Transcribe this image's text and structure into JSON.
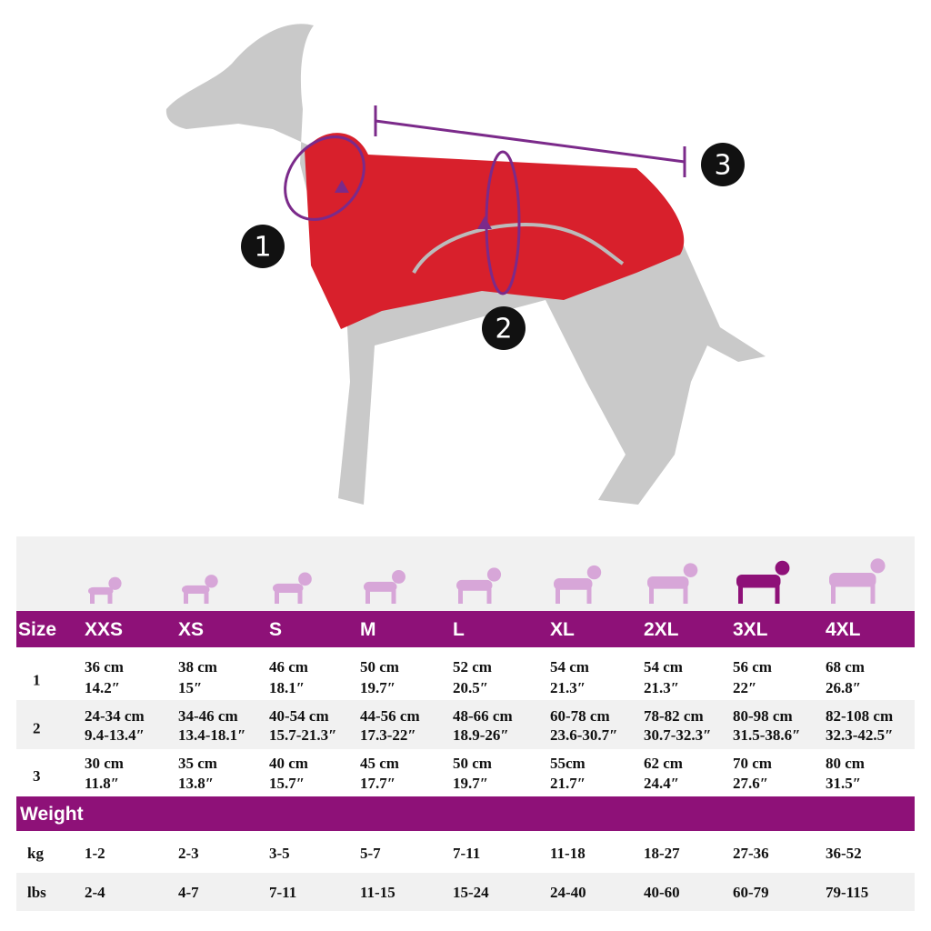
{
  "markers": [
    "1",
    "2",
    "3"
  ],
  "table": {
    "size_header": "Size",
    "sizes": [
      "XXS",
      "XS",
      "S",
      "M",
      "L",
      "XL",
      "2XL",
      "3XL",
      "4XL"
    ],
    "rows": [
      {
        "label": "1",
        "cells": [
          [
            "36 cm",
            "14.2″"
          ],
          [
            "38 cm",
            "15″"
          ],
          [
            "46 cm",
            "18.1″"
          ],
          [
            "50 cm",
            "19.7″"
          ],
          [
            "52 cm",
            "20.5″"
          ],
          [
            "54 cm",
            "21.3″"
          ],
          [
            "54 cm",
            "21.3″"
          ],
          [
            "56 cm",
            "22″"
          ],
          [
            "68 cm",
            "26.8″"
          ]
        ]
      },
      {
        "label": "2",
        "cells": [
          [
            "24-34 cm",
            "9.4-13.4″"
          ],
          [
            "34-46 cm",
            "13.4-18.1″"
          ],
          [
            "40-54 cm",
            "15.7-21.3″"
          ],
          [
            "44-56 cm",
            "17.3-22″"
          ],
          [
            "48-66 cm",
            "18.9-26″"
          ],
          [
            "60-78 cm",
            "23.6-30.7″"
          ],
          [
            "78-82 cm",
            "30.7-32.3″"
          ],
          [
            "80-98 cm",
            "31.5-38.6″"
          ],
          [
            "82-108 cm",
            "32.3-42.5″"
          ]
        ]
      },
      {
        "label": "3",
        "cells": [
          [
            "30 cm",
            "11.8″"
          ],
          [
            "35 cm",
            "13.8″"
          ],
          [
            "40 cm",
            "15.7″"
          ],
          [
            "45 cm",
            "17.7″"
          ],
          [
            "50 cm",
            "19.7″"
          ],
          [
            "55cm",
            "21.7″"
          ],
          [
            "62 cm",
            "24.4″"
          ],
          [
            "70 cm",
            "27.6″"
          ],
          [
            "80 cm",
            "31.5″"
          ]
        ]
      }
    ],
    "weight_header": "Weight",
    "weight_rows": [
      {
        "label": "kg",
        "cells": [
          "1-2",
          "2-3",
          "3-5",
          "5-7",
          "7-11",
          "11-18",
          "18-27",
          "27-36",
          "36-52"
        ]
      },
      {
        "label": "lbs",
        "cells": [
          "2-4",
          "4-7",
          "7-11",
          "11-15",
          "15-24",
          "24-40",
          "40-60",
          "60-79",
          "79-115"
        ]
      }
    ]
  }
}
